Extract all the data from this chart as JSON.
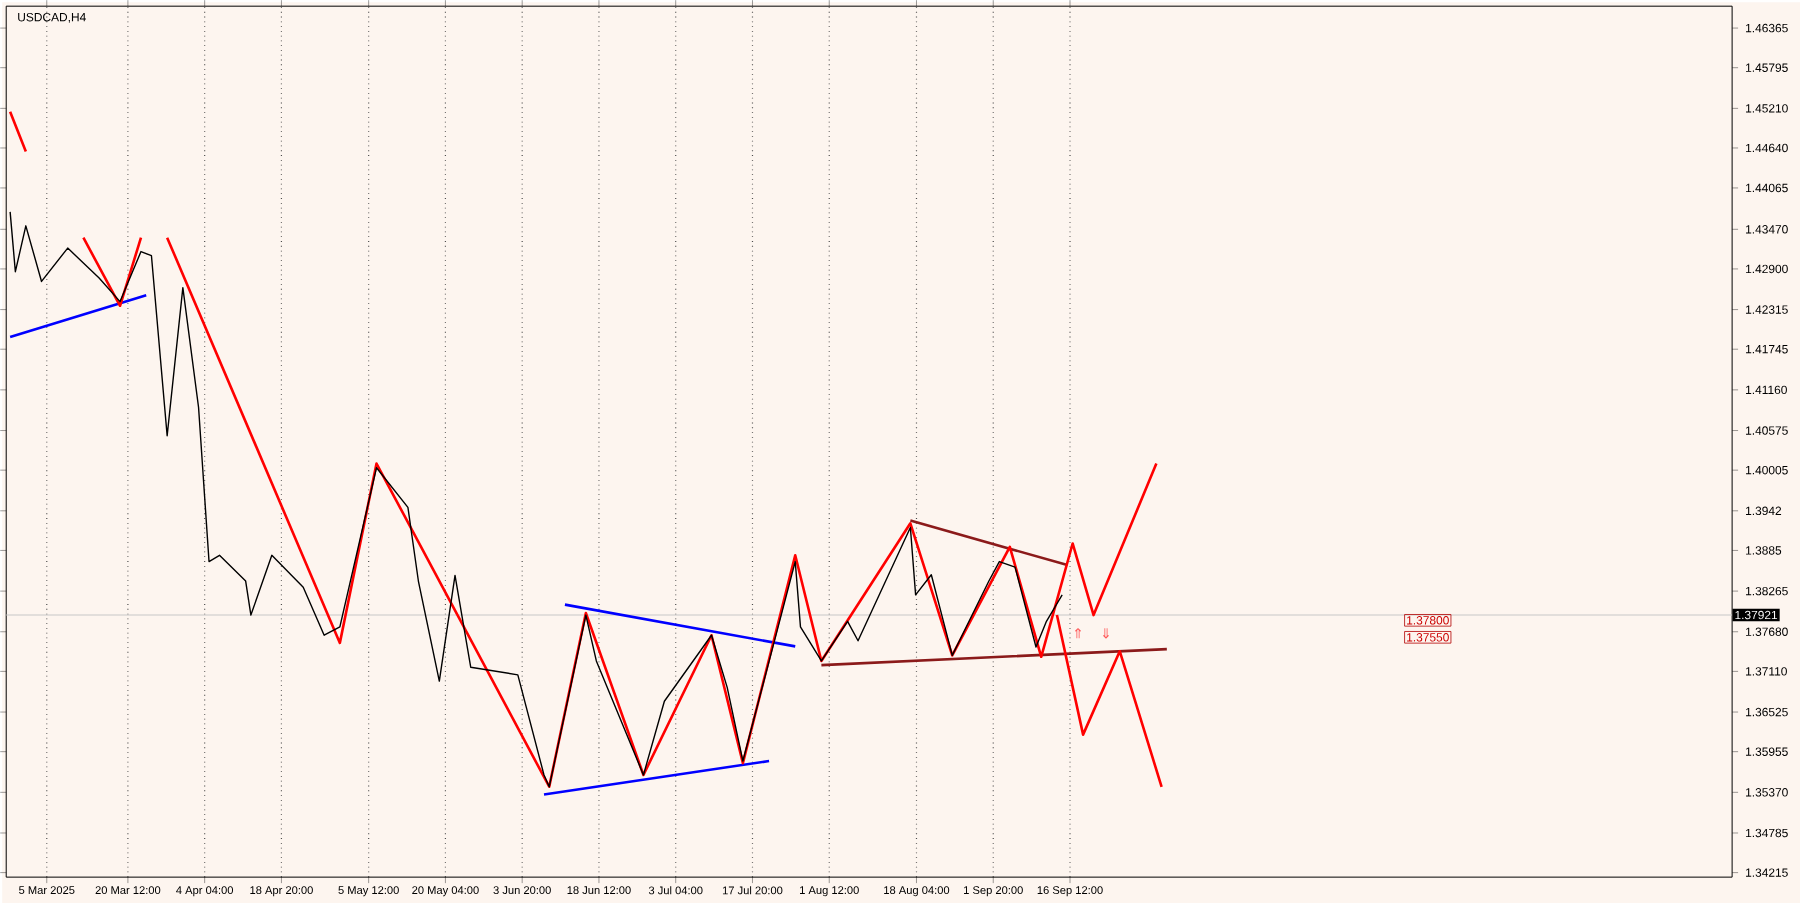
{
  "chart_data": {
    "type": "line",
    "title": "USDCAD,H4",
    "xlim": [
      "2025-02-25T06:00",
      "2026-01-21"
    ],
    "ylim": [
      1.3415,
      1.4668
    ],
    "xticks": [
      {
        "value": "2025-03-05T00:00",
        "label": "5 Mar 2025"
      },
      {
        "value": "2025-03-20T12:00",
        "label": "20 Mar 12:00"
      },
      {
        "value": "2025-04-04T04:00",
        "label": "4 Apr 04:00"
      },
      {
        "value": "2025-04-18T20:00",
        "label": "18 Apr 20:00"
      },
      {
        "value": "2025-05-05T12:00",
        "label": "5 May 12:00"
      },
      {
        "value": "2025-05-20T04:00",
        "label": "20 May 04:00"
      },
      {
        "value": "2025-06-03T20:00",
        "label": "3 Jun 20:00"
      },
      {
        "value": "2025-06-18T12:00",
        "label": "18 Jun 12:00"
      },
      {
        "value": "2025-07-03T04:00",
        "label": "3 Jul 04:00"
      },
      {
        "value": "2025-07-17T20:00",
        "label": "17 Jul 20:00"
      },
      {
        "value": "2025-08-01T12:00",
        "label": "1 Aug 12:00"
      },
      {
        "value": "2025-08-18T04:00",
        "label": "18 Aug 04:00"
      },
      {
        "value": "2025-09-01T20:00",
        "label": "1 Sep 20:00"
      },
      {
        "value": "2025-09-16T12:00",
        "label": "16 Sep 12:00"
      }
    ],
    "yticks": [
      1.46365,
      1.45795,
      {
        "value": 1.4521,
        "label": "1.45210"
      },
      {
        "value": 1.4464,
        "label": "1.44640"
      },
      1.44065,
      {
        "value": 1.4347,
        "label": "1.43470"
      },
      {
        "value": 1.429,
        "label": "1.42900"
      },
      1.42315,
      1.41745,
      {
        "value": 1.4116,
        "label": "1.41160"
      },
      1.40575,
      1.40005,
      1.3942,
      1.3885,
      1.38265,
      {
        "value": 1.3768,
        "label": "1.37680"
      },
      {
        "value": 1.3711,
        "label": "1.37110"
      },
      1.36525,
      1.35955,
      {
        "value": 1.3537,
        "label": "1.35370"
      },
      1.34785,
      1.34215
    ],
    "grid": "x",
    "marker": "none",
    "line_style": "solid",
    "series": [
      {
        "color": "#000000",
        "x": [
          "2025-02-26",
          "2025-02-27",
          "2025-03-01",
          "2025-03-04",
          "2025-03-09",
          "2025-03-15",
          "2025-03-19",
          "2025-03-23",
          "2025-03-25",
          "2025-03-28",
          "2025-03-31",
          "2025-04-03",
          "2025-04-05",
          "2025-04-07",
          "2025-04-12",
          "2025-04-13",
          "2025-04-17",
          "2025-04-23",
          "2025-04-27",
          "2025-04-30",
          "2025-05-07",
          "2025-05-13",
          "2025-05-15",
          "2025-05-19",
          "2025-05-22",
          "2025-05-25",
          "2025-06-03",
          "2025-06-08",
          "2025-06-09",
          "2025-06-16",
          "2025-06-18",
          "2025-06-27",
          "2025-07-01",
          "2025-07-10",
          "2025-07-13",
          "2025-07-16",
          "2025-07-26",
          "2025-07-27",
          "2025-07-31",
          "2025-08-05",
          "2025-08-07",
          "2025-08-17",
          "2025-08-18",
          "2025-08-21",
          "2025-08-25",
          "2025-09-01",
          "2025-09-03",
          "2025-09-06",
          "2025-09-10",
          "2025-09-12",
          "2025-09-15"
        ],
        "values": [
          1.4372,
          1.4286,
          1.4352,
          1.4272,
          1.432,
          1.4277,
          1.4243,
          1.4315,
          1.4309,
          1.405,
          1.4263,
          1.4091,
          1.3869,
          1.3878,
          1.3841,
          1.3792,
          1.3878,
          1.3832,
          1.3763,
          1.3775,
          1.4004,
          1.3947,
          1.3841,
          1.3697,
          1.3849,
          1.3717,
          1.3706,
          1.3562,
          1.3545,
          1.3792,
          1.3726,
          1.3562,
          1.3668,
          1.3763,
          1.3688,
          1.3582,
          1.3869,
          1.3775,
          1.3726,
          1.3783,
          1.3755,
          1.3918,
          1.3821,
          1.385,
          1.3734,
          1.3841,
          1.3869,
          1.3861,
          1.3746,
          1.3783,
          1.3821
        ]
      },
      {
        "color": "#ff0000",
        "x": [
          "2025-02-26",
          "2025-03-01",
          null,
          "2025-03-12",
          "2025-03-19",
          "2025-03-23",
          null,
          "2025-03-28",
          "2025-04-30",
          "2025-05-07",
          "2025-06-09",
          "2025-06-16",
          "2025-06-27",
          "2025-07-10",
          "2025-07-16",
          "2025-07-26",
          "2025-07-31",
          "2025-08-17",
          "2025-08-25",
          "2025-09-05",
          "2025-09-11",
          "2025-09-17",
          "2025-09-21",
          "2025-10-03"
        ],
        "values": [
          1.4516,
          1.4459,
          null,
          1.4335,
          1.4237,
          1.4335,
          null,
          1.4335,
          1.3752,
          1.401,
          1.3545,
          1.3795,
          1.3562,
          1.3763,
          1.3579,
          1.3878,
          1.3726,
          1.3924,
          1.3734,
          1.389,
          1.3732,
          1.3895,
          1.3792,
          1.401
        ]
      },
      {
        "color": "#ff0000",
        "x": [
          "2025-09-14",
          "2025-09-19",
          "2025-09-26",
          "2025-10-04"
        ],
        "values": [
          1.3792,
          1.362,
          1.374,
          1.3545
        ]
      },
      {
        "color": "#0000ff",
        "x": [
          "2025-02-26",
          "2025-03-24",
          null,
          "2025-06-12",
          "2025-07-26",
          null,
          "2025-06-08",
          "2025-07-21"
        ],
        "values": [
          1.4192,
          1.4252,
          null,
          1.3807,
          1.3747,
          null,
          1.3534,
          1.3582
        ]
      },
      {
        "color": "#8b1a1a",
        "x": [
          "2025-08-17",
          "2025-09-16",
          null,
          "2025-07-31",
          "2025-10-05"
        ],
        "values": [
          1.3928,
          1.3864,
          null,
          1.372,
          1.3743
        ]
      }
    ],
    "ref_lines": [
      {
        "axis": "y",
        "value": 1.37921,
        "label": "1.37921",
        "color": "#c8c8c8"
      }
    ],
    "annotations": [
      "⇑",
      "⇓",
      "1.37800",
      "1.37550"
    ]
  }
}
